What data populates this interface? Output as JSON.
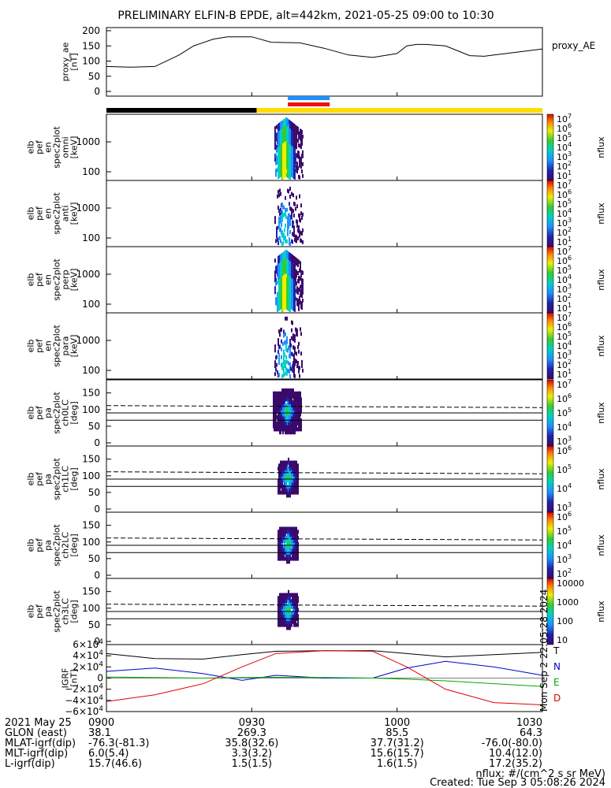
{
  "title": "PRELIMINARY ELFIN-B EPDE, alt=442km, 2021-05-25 09:00 to 10:30",
  "time_axis": {
    "start": "09:00",
    "end": "10:30",
    "ticks": [
      "0900",
      "0930",
      "1000",
      "1030"
    ]
  },
  "panels": [
    {
      "id": "proxy_ae",
      "ylabel_lines": [
        "proxy_ae",
        "[nT]"
      ],
      "yticks": [
        "200",
        "150",
        "100",
        "50",
        "0"
      ],
      "legend": "proxy_AE"
    },
    {
      "id": "en_omni",
      "ylabel_lines": [
        "elb",
        "pef",
        "en",
        "spec2plot",
        "omni",
        "[keV]"
      ],
      "yticks": [
        "1000",
        "100"
      ],
      "colorbar_ticks": [
        "10^7",
        "10^6",
        "10^5",
        "10^4",
        "10^3",
        "10^2",
        "10^1"
      ],
      "colorbar_label": "nflux"
    },
    {
      "id": "en_anti",
      "ylabel_lines": [
        "elb",
        "pef",
        "en",
        "spec2plot",
        "anti",
        "[keV]"
      ],
      "yticks": [
        "1000",
        "100"
      ],
      "colorbar_ticks": [
        "10^7",
        "10^6",
        "10^5",
        "10^4",
        "10^3",
        "10^2",
        "10^1"
      ],
      "colorbar_label": "nflux"
    },
    {
      "id": "en_perp",
      "ylabel_lines": [
        "elb",
        "pef",
        "en",
        "spec2plot",
        "perp",
        "[keV]"
      ],
      "yticks": [
        "1000",
        "100"
      ],
      "colorbar_ticks": [
        "10^7",
        "10^6",
        "10^5",
        "10^4",
        "10^3",
        "10^2",
        "10^1"
      ],
      "colorbar_label": "nflux"
    },
    {
      "id": "en_para",
      "ylabel_lines": [
        "elb",
        "pef",
        "en",
        "spec2plot",
        "para",
        "[keV]"
      ],
      "yticks": [
        "1000",
        "100"
      ],
      "colorbar_ticks": [
        "10^7",
        "10^6",
        "10^5",
        "10^4",
        "10^3",
        "10^2",
        "10^1"
      ],
      "colorbar_label": "nflux"
    },
    {
      "id": "pa_ch0",
      "ylabel_lines": [
        "elb",
        "pef",
        "pa",
        "spec2plot",
        "ch0LC",
        "[deg]"
      ],
      "yticks": [
        "150",
        "100",
        "50",
        "0"
      ],
      "colorbar_ticks": [
        "10^7",
        "10^6",
        "10^5",
        "10^4",
        "10^3"
      ],
      "colorbar_label": "nflux"
    },
    {
      "id": "pa_ch1",
      "ylabel_lines": [
        "elb",
        "pef",
        "pa",
        "spec2plot",
        "ch1LC",
        "[deg]"
      ],
      "yticks": [
        "150",
        "100",
        "50",
        "0"
      ],
      "colorbar_ticks": [
        "10^6",
        "10^5",
        "10^4",
        "10^3"
      ],
      "colorbar_label": "nflux"
    },
    {
      "id": "pa_ch2",
      "ylabel_lines": [
        "elb",
        "pef",
        "pa",
        "spec2plot",
        "ch2LC",
        "[deg]"
      ],
      "yticks": [
        "150",
        "100",
        "50",
        "0"
      ],
      "colorbar_ticks": [
        "10^6",
        "10^5",
        "10^4",
        "10^3",
        "10^2"
      ],
      "colorbar_label": "nflux"
    },
    {
      "id": "pa_ch3",
      "ylabel_lines": [
        "elb",
        "pef",
        "pa",
        "spec2plot",
        "ch3LC",
        "[deg]"
      ],
      "yticks": [
        "150",
        "100",
        "50",
        "0"
      ],
      "colorbar_ticks": [
        "10000",
        "1000",
        "100",
        "10"
      ],
      "colorbar_label": "nflux"
    },
    {
      "id": "igrf",
      "ylabel_lines": [
        "IGRF",
        "[nT]"
      ],
      "yticks": [
        "6×10^4",
        "4×10^4",
        "2×10^4",
        "0",
        "−2×10^4",
        "−4×10^4",
        "−6×10^4"
      ],
      "legend": [
        "T",
        "N",
        "E",
        "D"
      ],
      "legend_colors": [
        "#000000",
        "#0000cc",
        "#00aa00",
        "#dd0000"
      ],
      "side_note": "Mon Sep  2 22:05:28 2024"
    }
  ],
  "footer": {
    "rows": [
      {
        "label": "2021 May 25",
        "values": [
          "0900",
          "0930",
          "1000",
          "1030"
        ]
      },
      {
        "label": "GLON (east)",
        "values": [
          "38.1",
          "269.3",
          "85.5",
          "64.3"
        ]
      },
      {
        "label": "MLAT-igrf(dip)",
        "values": [
          "-76.3(-81.3)",
          "35.8(32.6)",
          "37.7(31.2)",
          "-76.0(-80.0)"
        ]
      },
      {
        "label": "MLT-igrf(dip)",
        "values": [
          "6.0(5.4)",
          "3.3(3.2)",
          "15.6(15.7)",
          "10.4(12.0)"
        ]
      },
      {
        "label": "L-igrf(dip)",
        "values": [
          "15.7(46.6)",
          "1.5(1.5)",
          "1.6(1.5)",
          "17.2(35.2)"
        ]
      }
    ],
    "units_note": "nflux: #/(cm^2 s sr MeV)",
    "created": "Created: Tue Sep  3 05:08:26 2024"
  },
  "chart_data": {
    "type": "line",
    "title": "PRELIMINARY ELFIN-B EPDE, alt=442km, 2021-05-25 09:00 to 10:30",
    "proxy_ae": {
      "x_minutes_after_0900": [
        0,
        5,
        10,
        15,
        18,
        22,
        25,
        30,
        34,
        40,
        45,
        50,
        55,
        60,
        62,
        64,
        66,
        70,
        75,
        78,
        80,
        85,
        90
      ],
      "values": [
        82,
        80,
        82,
        120,
        150,
        172,
        180,
        180,
        162,
        160,
        142,
        120,
        112,
        125,
        150,
        155,
        155,
        150,
        118,
        116,
        120,
        130,
        140
      ],
      "ylim": [
        0,
        200
      ],
      "series_name": "proxy_AE"
    },
    "segment_bars": [
      {
        "color": "#000000",
        "from_min": 0,
        "to_min": 31
      },
      {
        "color": "#ffdd00",
        "from_min": 31,
        "to_min": 90
      }
    ],
    "science_zone_markers": [
      {
        "color": "#1e90ff",
        "from_min": 35.5,
        "to_min": 42.5
      },
      {
        "color": "#ee1111",
        "from_min": 35.5,
        "to_min": 42.5
      }
    ],
    "loss_cone_lines_deg": [
      68,
      90,
      112
    ],
    "igrf": {
      "x_minutes_after_0900": [
        0,
        10,
        20,
        28,
        35,
        45,
        55,
        62,
        70,
        80,
        90
      ],
      "T": [
        44000,
        35000,
        34000,
        42000,
        48000,
        49000,
        49000,
        44000,
        38000,
        42000,
        46000
      ],
      "N": [
        12000,
        18000,
        8000,
        -4000,
        5000,
        0,
        0,
        18000,
        30000,
        20000,
        5000
      ],
      "E": [
        2000,
        1000,
        0,
        1000,
        1500,
        1000,
        0,
        -2000,
        -5000,
        -10000,
        -15000
      ],
      "D": [
        -42000,
        -30000,
        -10000,
        20000,
        44000,
        49000,
        48000,
        20000,
        -20000,
        -44000,
        -48000
      ],
      "ylim": [
        -60000,
        60000
      ]
    }
  }
}
